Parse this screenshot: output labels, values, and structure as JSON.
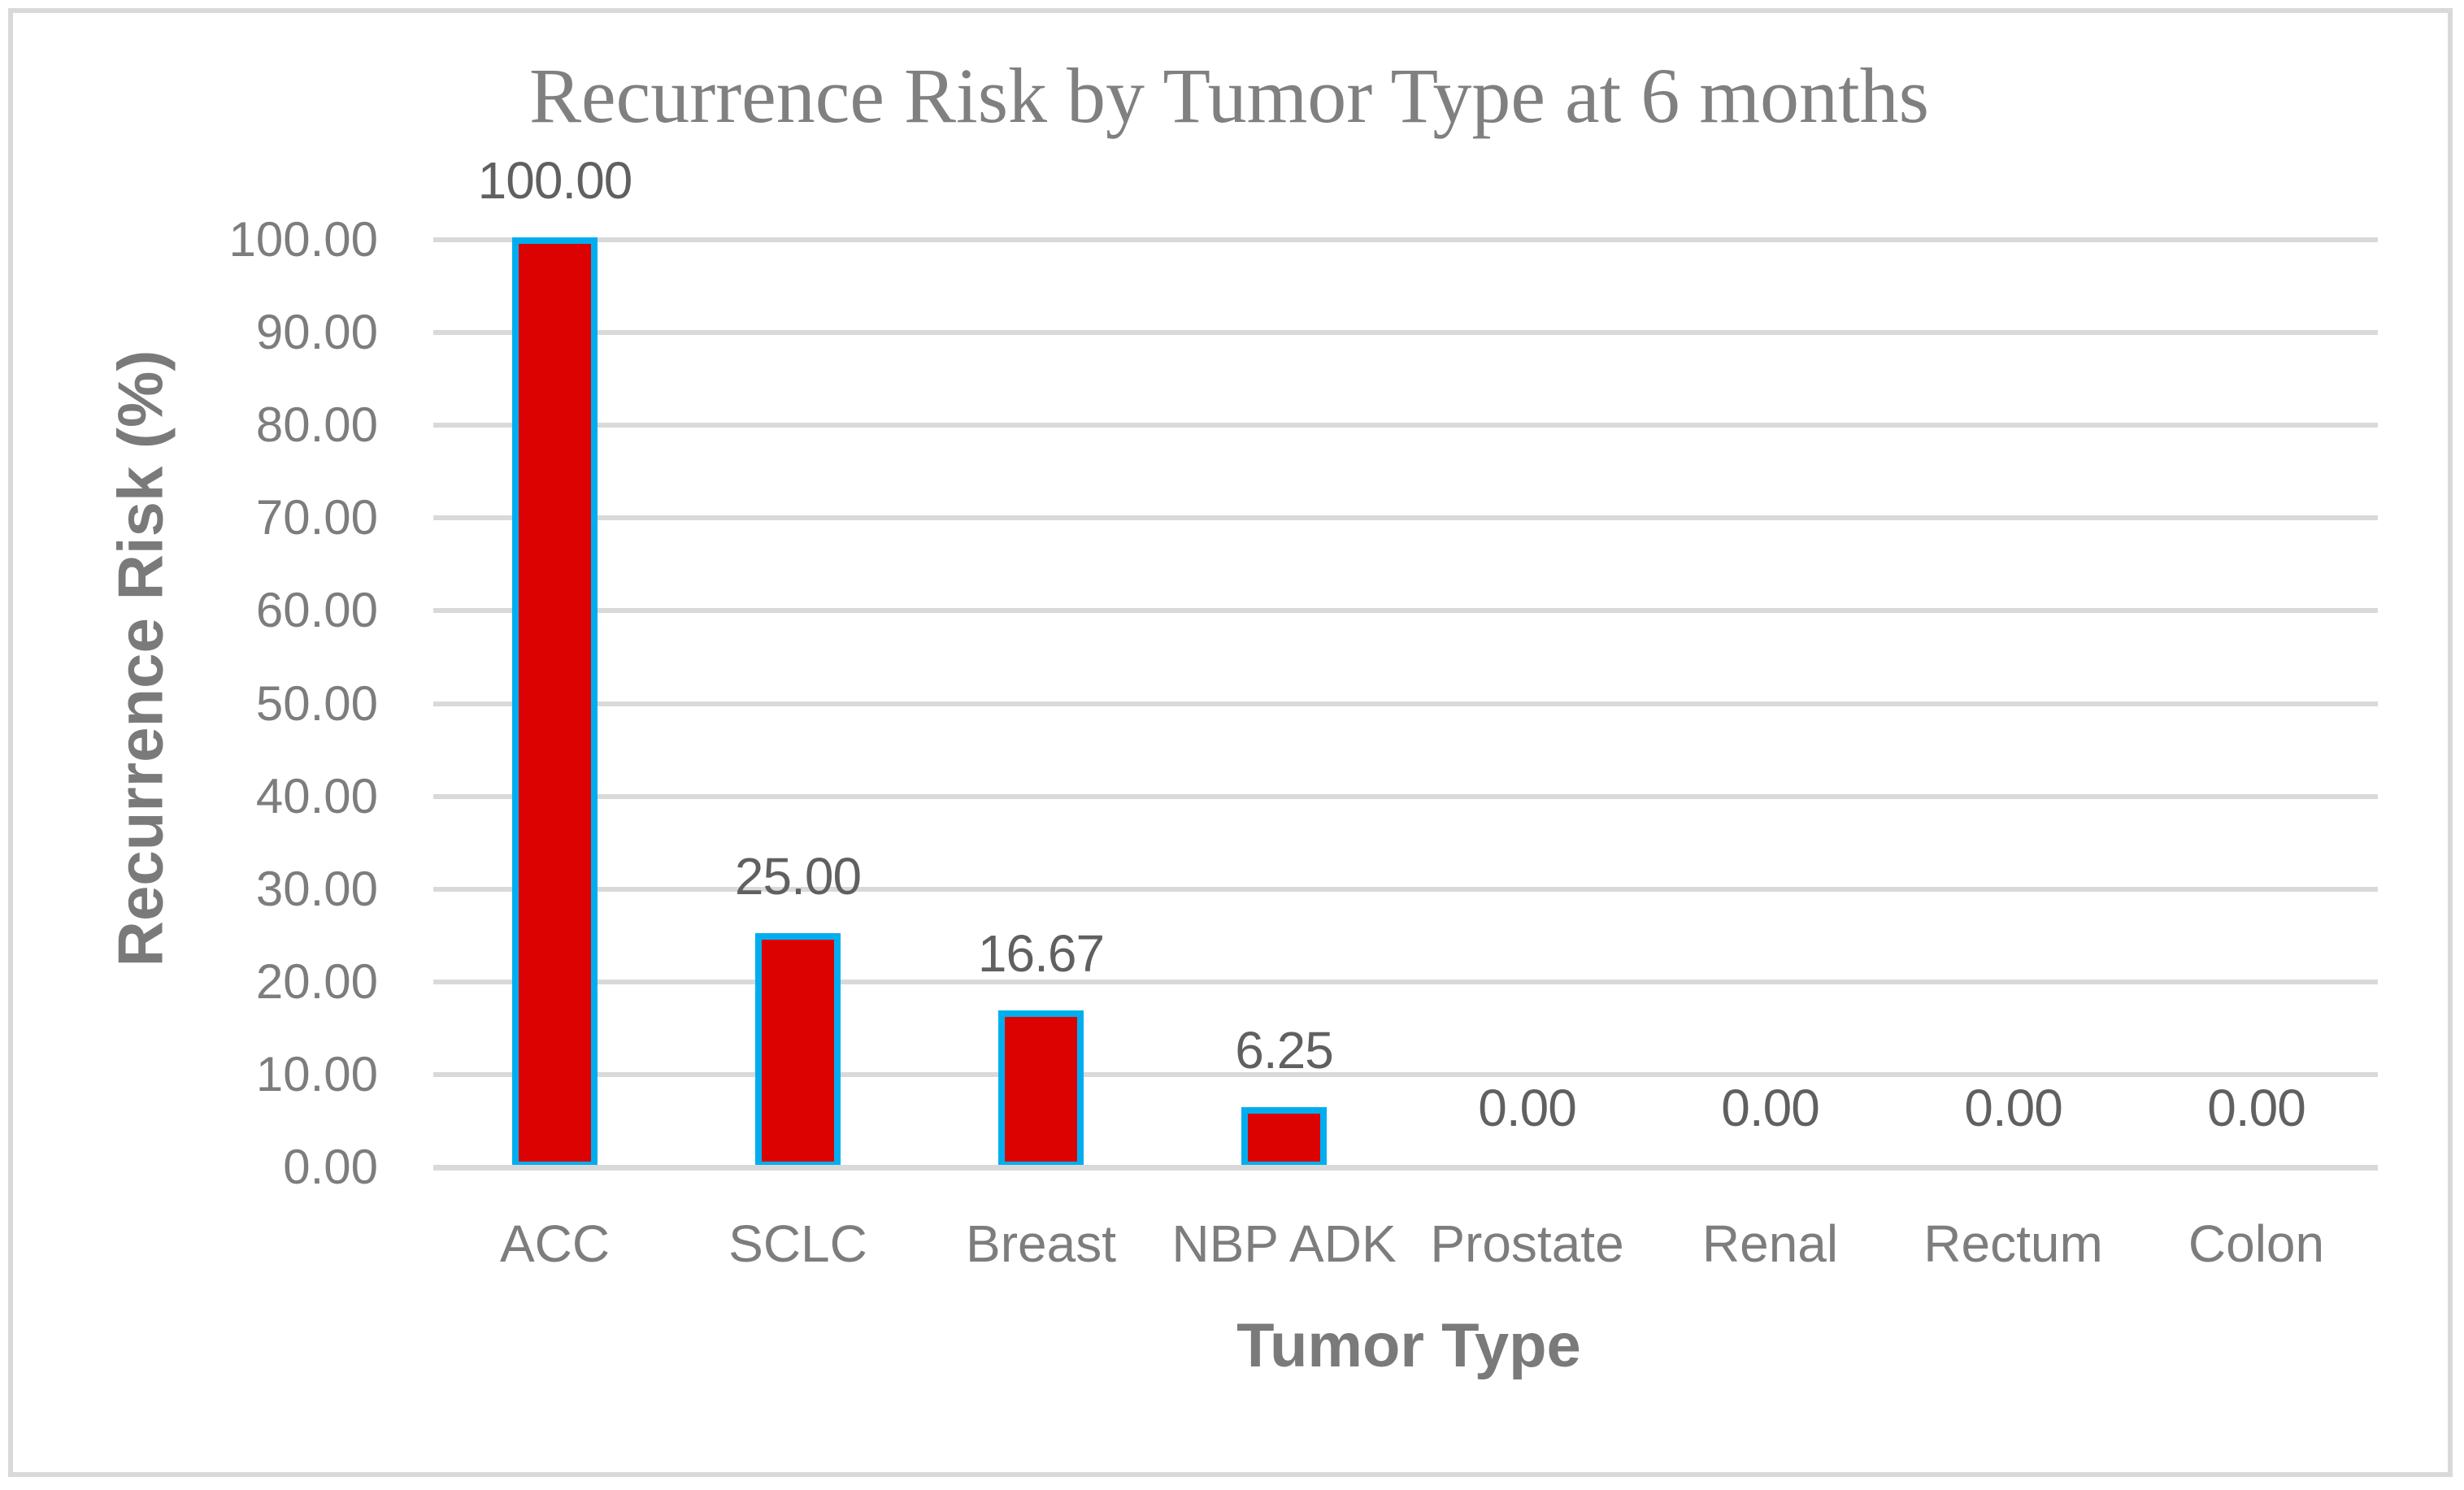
{
  "chart_data": {
    "type": "bar",
    "title": "Recurrence Risk by Tumor Type at 6 months",
    "xlabel": "Tumor Type",
    "ylabel": "Recurrence Risk (%)",
    "categories": [
      "ACC",
      "SCLC",
      "Breast",
      "NBP ADK",
      "Prostate",
      "Renal",
      "Rectum",
      "Colon"
    ],
    "values": [
      100.0,
      25.0,
      16.67,
      6.25,
      0.0,
      0.0,
      0.0,
      0.0
    ],
    "data_labels": [
      "100.00",
      "25.00",
      "16.67",
      "6.25",
      "0.00",
      "0.00",
      "0.00",
      "0.00"
    ],
    "ylim": [
      0,
      100
    ],
    "ytick_step": 10,
    "ytick_labels": [
      "0.00",
      "10.00",
      "20.00",
      "30.00",
      "40.00",
      "50.00",
      "60.00",
      "70.00",
      "80.00",
      "90.00",
      "100.00"
    ],
    "grid": true,
    "legend": "none",
    "colors": {
      "bar_fill": "#DD0202",
      "bar_border": "#00AEEF",
      "gridline": "#D9D9D9",
      "axis_line": "#D9D9D9",
      "chart_border": "#D9D9D9",
      "title_text": "#808080",
      "tick_text": "#7D7D7D",
      "axis_title_text": "#7A7A7A",
      "data_label_text": "#606060",
      "background": "#FFFFFF"
    }
  }
}
